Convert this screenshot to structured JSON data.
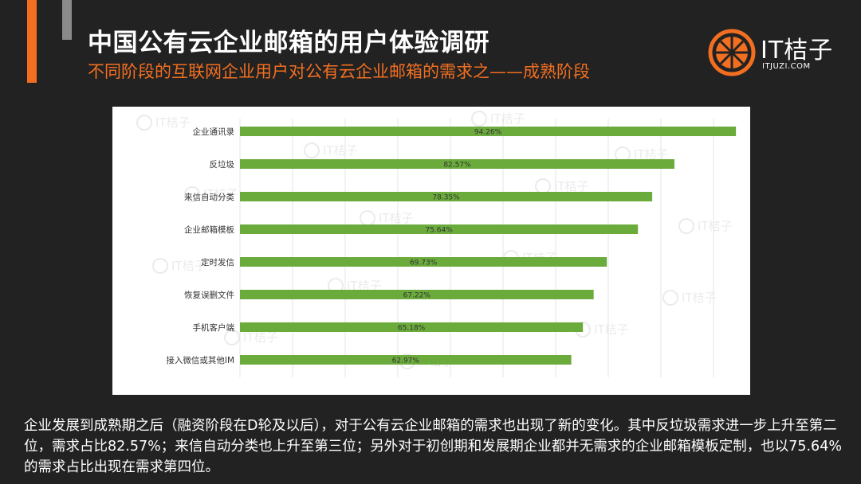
{
  "header": {
    "title": "中国公有云企业邮箱的用户体验调研",
    "subtitle": "不同阶段的互联网企业用户对公有云企业邮箱的需求之——成熟阶段"
  },
  "logo": {
    "text": "IT桔子",
    "url_text": "ITJUZI.COM",
    "watermark_text": "IT桔子",
    "icon": "orange-slice-icon"
  },
  "colors": {
    "background": "#222222",
    "accent": "#f26f21",
    "bar": "#6aab3c"
  },
  "chart_data": {
    "type": "bar",
    "orientation": "horizontal",
    "categories": [
      "企业通讯录",
      "反垃圾",
      "来信自动分类",
      "企业邮箱模板",
      "定时发信",
      "恢复误删文件",
      "手机客户端",
      "接入微信或其他IM"
    ],
    "values": [
      94.26,
      82.57,
      78.35,
      75.64,
      69.73,
      67.22,
      65.18,
      62.97
    ],
    "data_labels": [
      "94.26%",
      "82.57%",
      "78.35%",
      "75.64%",
      "69.73%",
      "67.22%",
      "65.18%",
      "62.97%"
    ],
    "xlim": [
      0,
      100
    ],
    "grid": true,
    "legend": "none"
  },
  "footnote": "企业发展到成熟期之后（融资阶段在D轮及以后），对于公有云企业邮箱的需求也出现了新的变化。其中反垃圾需求进一步上升至第二位，需求占比82.57%；来信自动分类也上升至第三位；另外对于初创期和发展期企业都并无需求的企业邮箱模板定制，也以75.64%的需求占比出现在需求第四位。"
}
